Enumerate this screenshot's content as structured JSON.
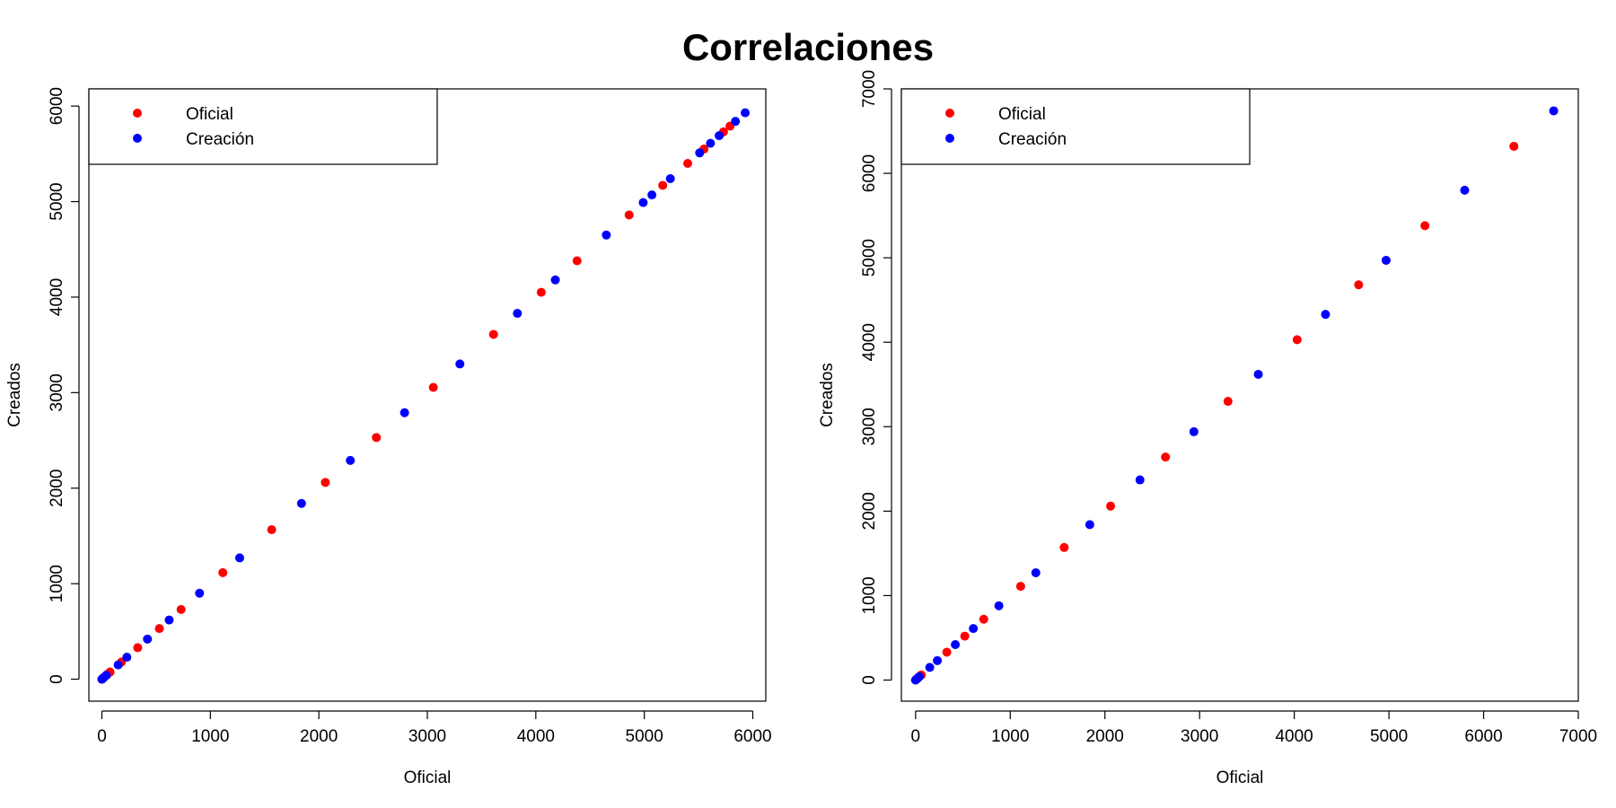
{
  "figure": {
    "title": "Correlaciones"
  },
  "colors": {
    "oficial": "#ff0000",
    "creacion": "#0000ff",
    "axis": "#000000"
  },
  "chart_data": [
    {
      "type": "scatter",
      "xlabel": "Oficial",
      "ylabel": "Creados",
      "xlim": [
        -120,
        6120
      ],
      "ylim": [
        -230,
        6180
      ],
      "xticks": [
        0,
        1000,
        2000,
        3000,
        4000,
        5000,
        6000
      ],
      "yticks": [
        0,
        1000,
        2000,
        3000,
        4000,
        5000,
        6000
      ],
      "legend": {
        "position": "top-left",
        "entries": [
          "Oficial",
          "Creación"
        ]
      },
      "series": [
        {
          "name": "Oficial",
          "color": "#ff0000",
          "points": [
            [
              0,
              0
            ],
            [
              10,
              10
            ],
            [
              25,
              25
            ],
            [
              50,
              50
            ],
            [
              75,
              75
            ],
            [
              180,
              180
            ],
            [
              330,
              330
            ],
            [
              530,
              530
            ],
            [
              730,
              730
            ],
            [
              1115,
              1115
            ],
            [
              1565,
              1565
            ],
            [
              2060,
              2060
            ],
            [
              2530,
              2530
            ],
            [
              3055,
              3055
            ],
            [
              3610,
              3610
            ],
            [
              4050,
              4050
            ],
            [
              4380,
              4380
            ],
            [
              4860,
              4860
            ],
            [
              5170,
              5170
            ],
            [
              5400,
              5400
            ],
            [
              5550,
              5550
            ],
            [
              5730,
              5730
            ],
            [
              5790,
              5790
            ]
          ]
        },
        {
          "name": "Creación",
          "color": "#0000ff",
          "points": [
            [
              0,
              0
            ],
            [
              15,
              15
            ],
            [
              40,
              40
            ],
            [
              150,
              150
            ],
            [
              230,
              230
            ],
            [
              420,
              420
            ],
            [
              620,
              620
            ],
            [
              900,
              900
            ],
            [
              1270,
              1270
            ],
            [
              1840,
              1840
            ],
            [
              2290,
              2290
            ],
            [
              2790,
              2790
            ],
            [
              3300,
              3300
            ],
            [
              3830,
              3830
            ],
            [
              4180,
              4180
            ],
            [
              4650,
              4650
            ],
            [
              4990,
              4990
            ],
            [
              5070,
              5070
            ],
            [
              5240,
              5240
            ],
            [
              5510,
              5510
            ],
            [
              5610,
              5610
            ],
            [
              5690,
              5690
            ],
            [
              5840,
              5840
            ],
            [
              5930,
              5930
            ]
          ]
        }
      ]
    },
    {
      "type": "scatter",
      "xlabel": "Oficial",
      "ylabel": "Creados",
      "xlim": [
        -150,
        7000
      ],
      "ylim": [
        -250,
        7000
      ],
      "xticks": [
        0,
        1000,
        2000,
        3000,
        4000,
        5000,
        6000,
        7000
      ],
      "yticks": [
        0,
        1000,
        2000,
        3000,
        4000,
        5000,
        6000,
        7000
      ],
      "legend": {
        "position": "top-left",
        "entries": [
          "Oficial",
          "Creación"
        ]
      },
      "series": [
        {
          "name": "Oficial",
          "color": "#ff0000",
          "points": [
            [
              0,
              0
            ],
            [
              10,
              10
            ],
            [
              25,
              25
            ],
            [
              60,
              60
            ],
            [
              330,
              330
            ],
            [
              520,
              520
            ],
            [
              720,
              720
            ],
            [
              1110,
              1110
            ],
            [
              1570,
              1570
            ],
            [
              2060,
              2060
            ],
            [
              2640,
              2640
            ],
            [
              3300,
              3300
            ],
            [
              4030,
              4030
            ],
            [
              4680,
              4680
            ],
            [
              5380,
              5380
            ],
            [
              6320,
              6320
            ]
          ]
        },
        {
          "name": "Creación",
          "color": "#0000ff",
          "points": [
            [
              0,
              0
            ],
            [
              15,
              15
            ],
            [
              40,
              40
            ],
            [
              150,
              150
            ],
            [
              230,
              230
            ],
            [
              420,
              420
            ],
            [
              610,
              610
            ],
            [
              880,
              880
            ],
            [
              1270,
              1270
            ],
            [
              1840,
              1840
            ],
            [
              2370,
              2370
            ],
            [
              2940,
              2940
            ],
            [
              3620,
              3620
            ],
            [
              4330,
              4330
            ],
            [
              4970,
              4970
            ],
            [
              5800,
              5800
            ],
            [
              6740,
              6740
            ]
          ]
        }
      ]
    }
  ]
}
